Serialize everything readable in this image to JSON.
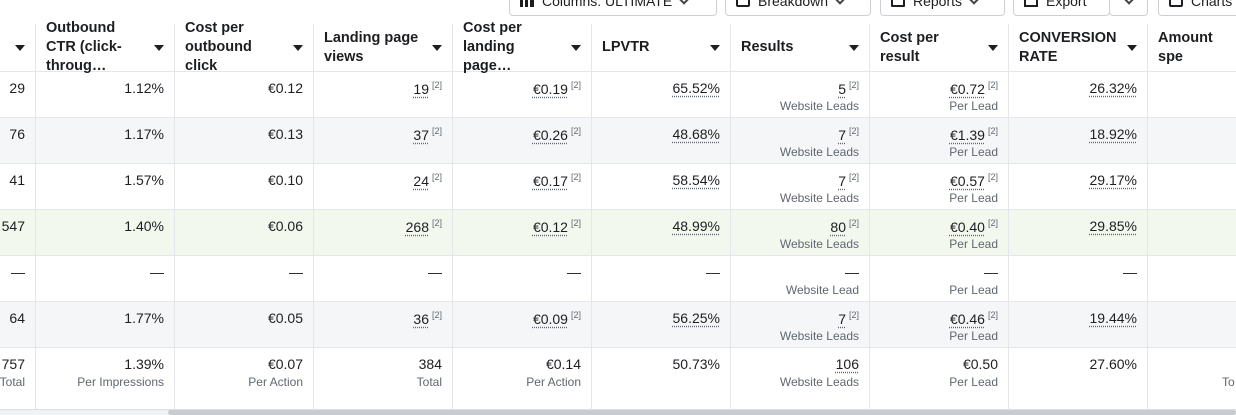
{
  "toolbar": {
    "columns_label": "Columns: ULTIMATE",
    "breakdown_label": "Breakdown",
    "reports_label": "Reports",
    "export_label": "Export",
    "charts_label": "Charts"
  },
  "columns": [
    {
      "label": ""
    },
    {
      "label": "Outbound CTR (click-throug…"
    },
    {
      "label": "Cost per outbound click"
    },
    {
      "label": "Landing page views"
    },
    {
      "label": "Cost per landing page…"
    },
    {
      "label": "LPVTR"
    },
    {
      "label": "Results"
    },
    {
      "label": "Cost per result"
    },
    {
      "label": "CONVERSION RATE"
    },
    {
      "label": "Amount spe"
    }
  ],
  "rows": [
    {
      "c0": "29",
      "c1": "1.12%",
      "c2": "€0.12",
      "c3": "19",
      "c4": "€0.19",
      "c5": "65.52%",
      "c6": "5",
      "c6s": "Website Leads",
      "c7": "€0.72",
      "c7s": "Per Lead",
      "c8": "26.32%"
    },
    {
      "c0": "76",
      "c1": "1.17%",
      "c2": "€0.13",
      "c3": "37",
      "c4": "€0.26",
      "c5": "48.68%",
      "c6": "7",
      "c6s": "Website Leads",
      "c7": "€1.39",
      "c7s": "Per Lead",
      "c8": "18.92%"
    },
    {
      "c0": "41",
      "c1": "1.57%",
      "c2": "€0.10",
      "c3": "24",
      "c4": "€0.17",
      "c5": "58.54%",
      "c6": "7",
      "c6s": "Website Leads",
      "c7": "€0.57",
      "c7s": "Per Lead",
      "c8": "29.17%"
    },
    {
      "c0": "547",
      "c1": "1.40%",
      "c2": "€0.06",
      "c3": "268",
      "c4": "€0.12",
      "c5": "48.99%",
      "c6": "80",
      "c6s": "Website Leads",
      "c7": "€0.40",
      "c7s": "Per Lead",
      "c8": "29.85%"
    },
    {
      "c0": "—",
      "c1": "—",
      "c2": "—",
      "c3": "—",
      "c4": "—",
      "c5": "—",
      "c6": "—",
      "c6s": "Website Lead",
      "c7": "—",
      "c7s": "Per Lead",
      "c8": "—"
    },
    {
      "c0": "64",
      "c1": "1.77%",
      "c2": "€0.05",
      "c3": "36",
      "c4": "€0.09",
      "c5": "56.25%",
      "c6": "7",
      "c6s": "Website Leads",
      "c7": "€0.46",
      "c7s": "Per Lead",
      "c8": "19.44%"
    }
  ],
  "footnote_marker": "[2]",
  "totals": {
    "c0": "757",
    "c0s": "Total",
    "c1": "1.39%",
    "c1s": "Per Impressions",
    "c2": "€0.07",
    "c2s": "Per Action",
    "c3": "384",
    "c3s": "Total",
    "c4": "€0.14",
    "c4s": "Per Action",
    "c5": "50.73%",
    "c6": "106",
    "c6s": "Website Leads",
    "c7": "€0.50",
    "c7s": "Per Lead",
    "c8": "27.60%",
    "c9s": "To"
  }
}
